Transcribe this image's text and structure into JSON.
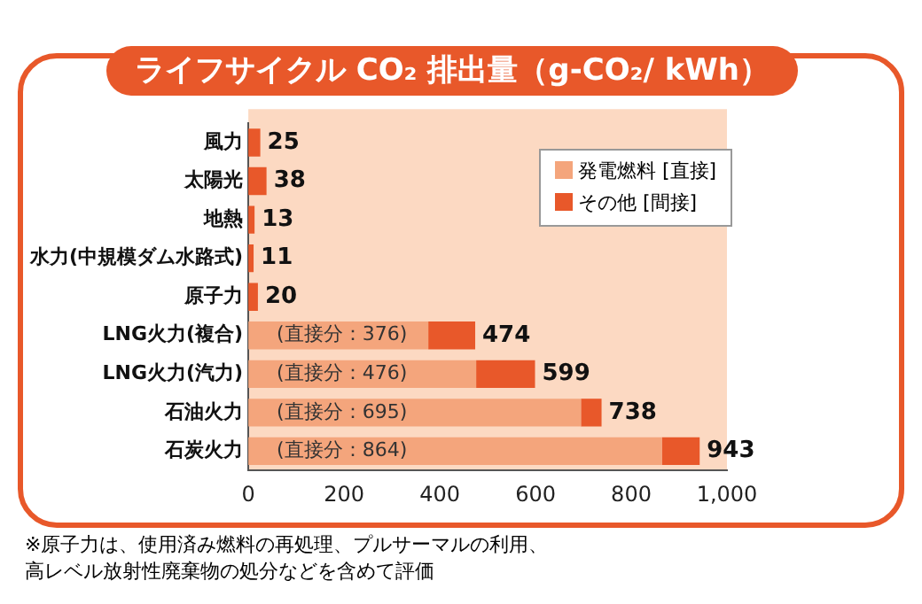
{
  "chart_data": {
    "type": "bar",
    "orientation": "horizontal",
    "stacked": true,
    "title": "ライフサイクル CO₂ 排出量（g-CO₂/ kWh）",
    "categories": [
      "風力",
      "太陽光",
      "地熱",
      "水力(中規模ダム水路式)",
      "原子力",
      "LNG火力(複合)",
      "LNG火力(汽力)",
      "石油火力",
      "石炭火力"
    ],
    "series": [
      {
        "name": "発電燃料 [直接]",
        "color": "#f4a57c",
        "values": [
          0,
          0,
          0,
          0,
          0,
          376,
          476,
          695,
          864
        ],
        "value_labels": [
          null,
          null,
          null,
          null,
          null,
          "(直接分：376)",
          "(直接分：476)",
          "(直接分：695)",
          "(直接分：864)"
        ]
      },
      {
        "name": "その他 [間接]",
        "color": "#e8582a",
        "values": [
          25,
          38,
          13,
          11,
          20,
          98,
          123,
          43,
          79
        ]
      }
    ],
    "totals": [
      "25",
      "38",
      "13",
      "11",
      "20",
      "474",
      "599",
      "738",
      "943"
    ],
    "xlim": [
      0,
      1000
    ],
    "xticks": [
      0,
      200,
      400,
      600,
      800,
      {
        "value": 1000,
        "label": "1,000"
      }
    ],
    "grid": false,
    "legend": "top right",
    "annotations": [
      "※原子力は、使用済み燃料の再処理、プルサーマルの利用、高レベル放射性廃棄物の処分などを含めて評価"
    ]
  }
}
